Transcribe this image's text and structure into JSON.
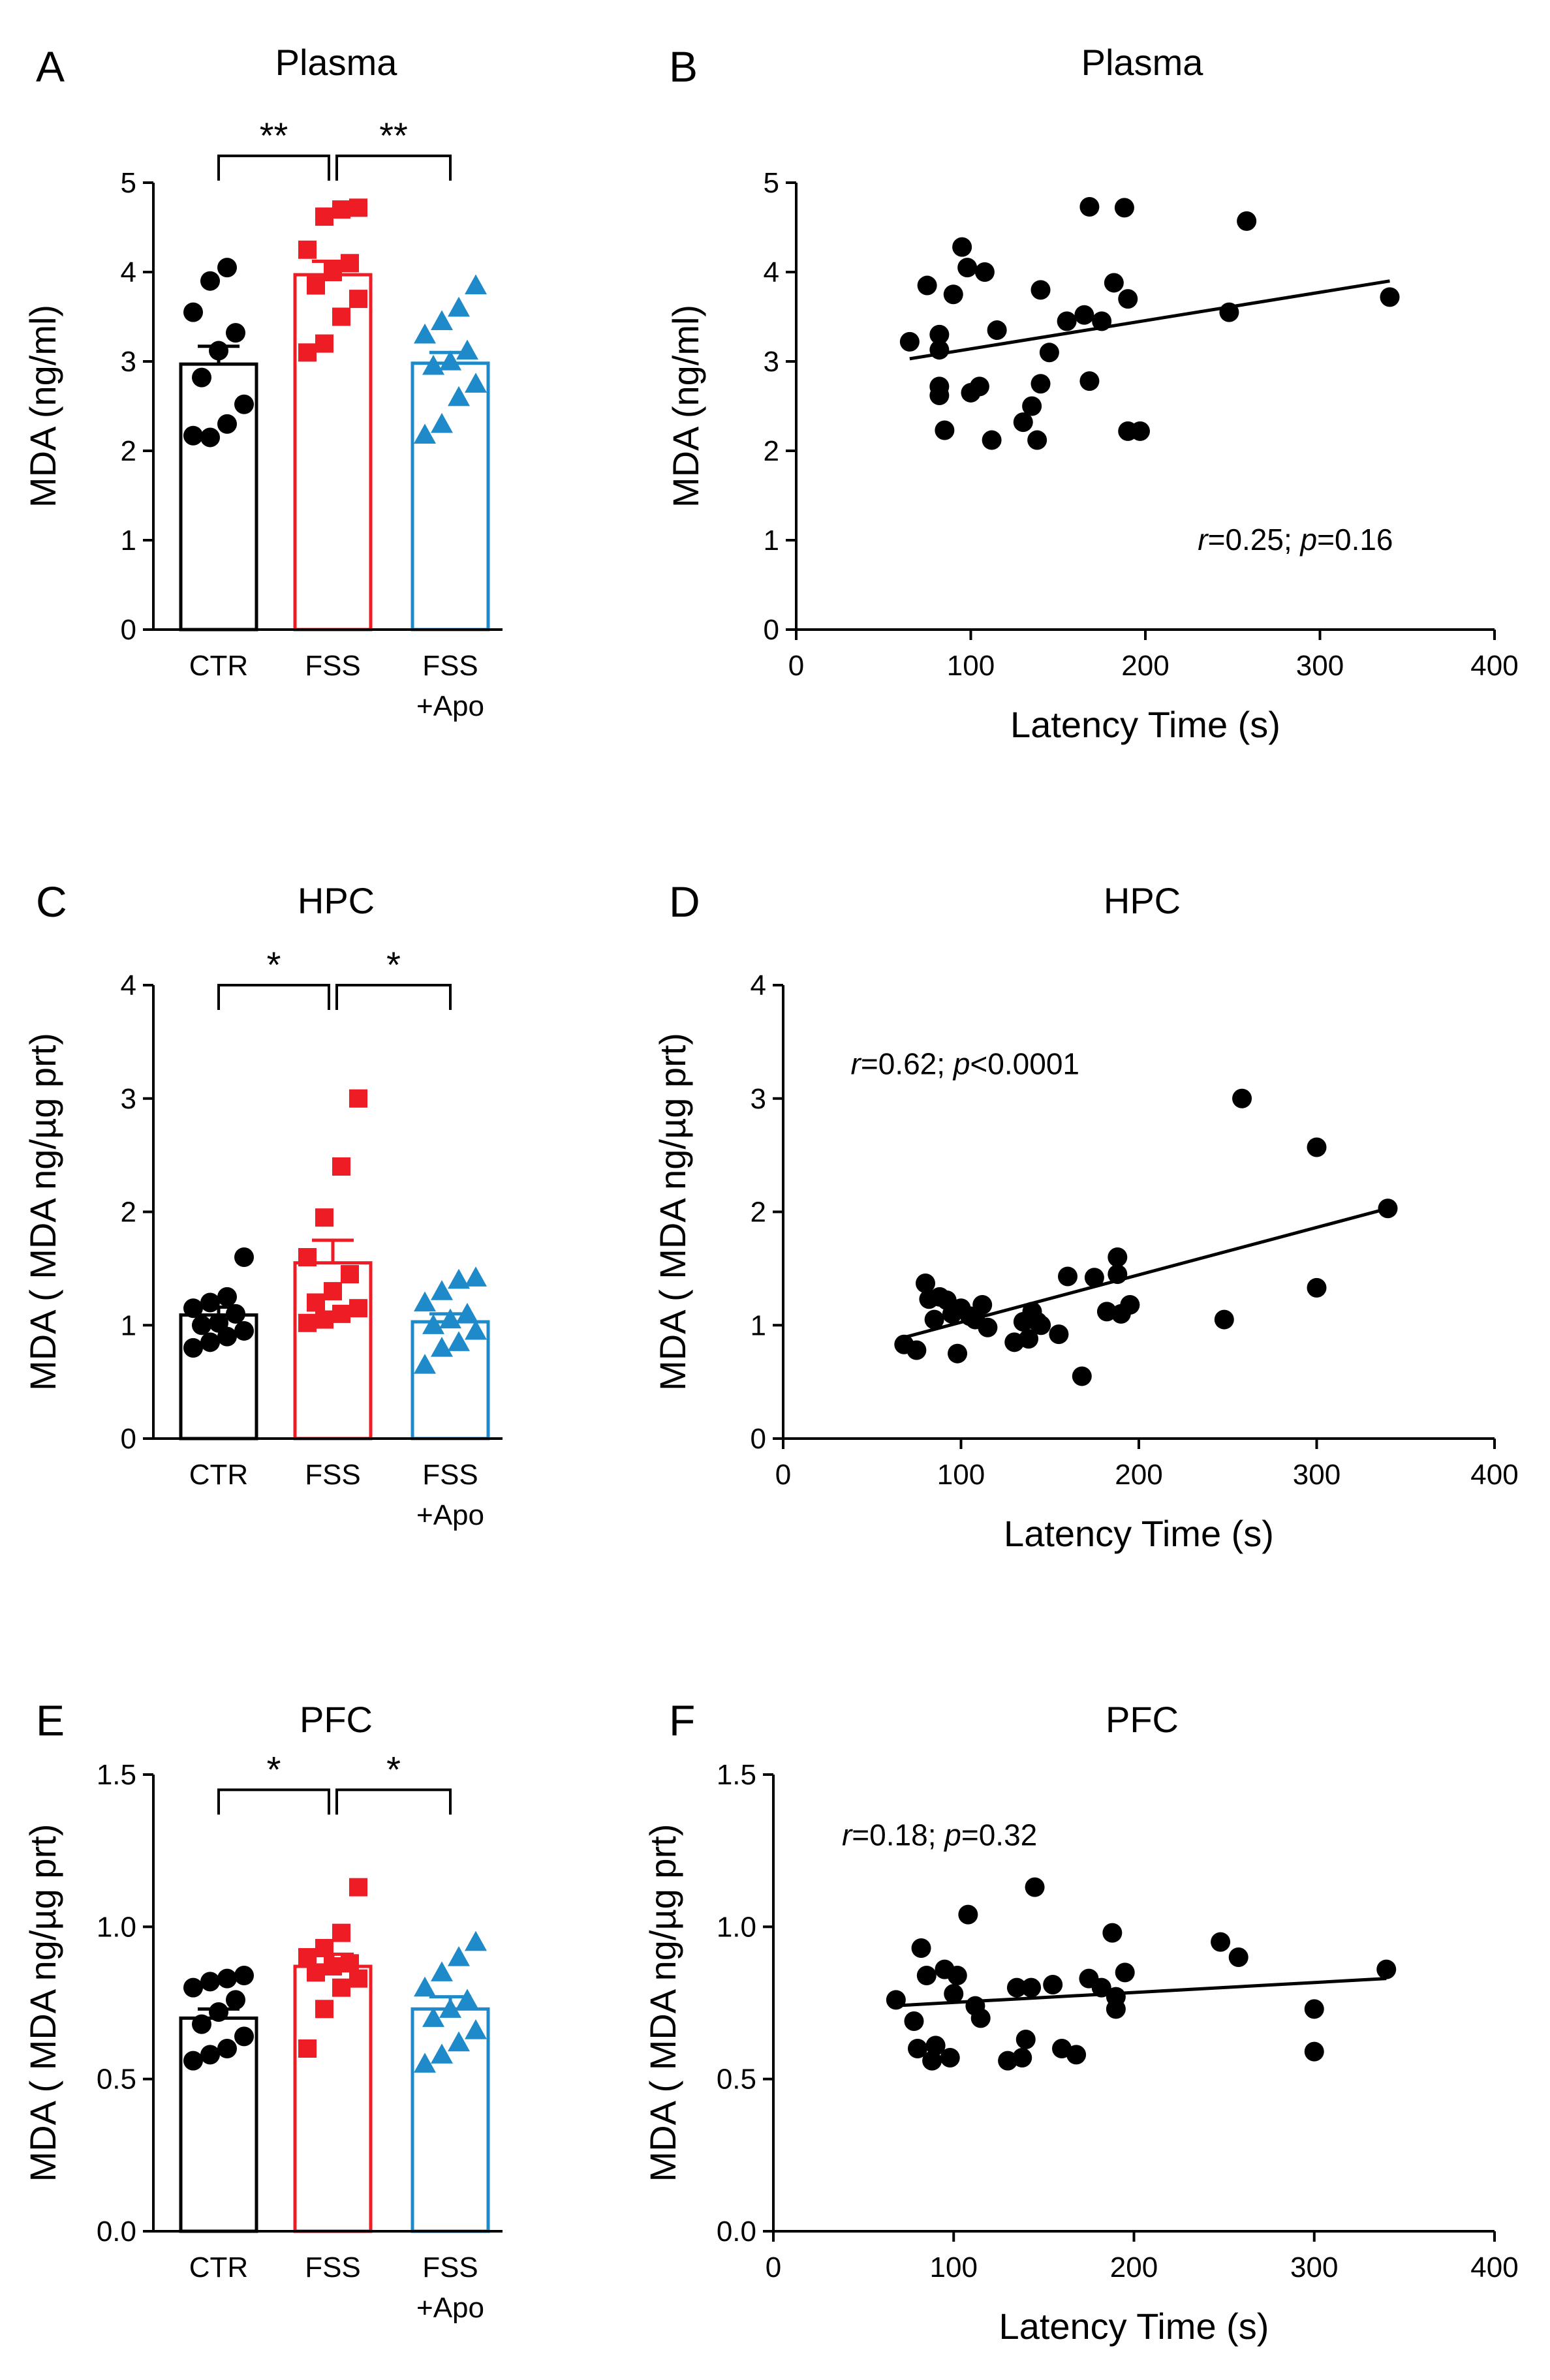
{
  "figure": {
    "panels": [
      {
        "letter": "A",
        "title": "Plasma"
      },
      {
        "letter": "B",
        "title": "Plasma"
      },
      {
        "letter": "C",
        "title": "HPC"
      },
      {
        "letter": "D",
        "title": "HPC"
      },
      {
        "letter": "E",
        "title": "PFC"
      },
      {
        "letter": "F",
        "title": "PFC"
      }
    ]
  },
  "colors": {
    "ctr": "#000000",
    "fss": "#ee1c25",
    "apo": "#1f8ac9",
    "axis": "#000000"
  },
  "chart_data": [
    {
      "panel": "A",
      "type": "bar",
      "title": "Plasma",
      "ylabel": "MDA (ng/ml)",
      "ylim": [
        0,
        5
      ],
      "yticks": [
        0,
        1,
        2,
        3,
        4,
        5
      ],
      "ytick_labels": [
        "0",
        "1",
        "2",
        "3",
        "4",
        "5"
      ],
      "groups": [
        {
          "name": "CTR",
          "label_lines": [
            "CTR"
          ],
          "mean": 2.97,
          "sem": 0.2,
          "marker": "circle",
          "points": [
            2.17,
            2.15,
            2.3,
            2.52,
            2.82,
            3.12,
            3.32,
            3.55,
            3.9,
            4.05
          ]
        },
        {
          "name": "FSS",
          "label_lines": [
            "FSS"
          ],
          "mean": 3.97,
          "sem": 0.15,
          "marker": "square",
          "points": [
            3.1,
            3.2,
            3.5,
            3.7,
            3.85,
            4.0,
            4.1,
            4.25,
            4.62,
            4.7,
            4.72
          ]
        },
        {
          "name": "FSS+Apo",
          "label_lines": [
            "FSS",
            "+Apo"
          ],
          "mean": 2.98,
          "sem": 0.12,
          "marker": "triangle",
          "points": [
            2.18,
            2.3,
            2.6,
            2.75,
            2.95,
            3.0,
            3.12,
            3.3,
            3.45,
            3.6,
            3.85
          ]
        }
      ],
      "significance": [
        {
          "from": 0,
          "to": 1,
          "label": "**"
        },
        {
          "from": 1,
          "to": 2,
          "label": "**"
        }
      ],
      "bracket_y": 5.3
    },
    {
      "panel": "B",
      "type": "scatter",
      "title": "Plasma",
      "xlabel": "Latency Time (s)",
      "ylabel": "MDA (ng/ml)",
      "xlim": [
        0,
        400
      ],
      "ylim": [
        0,
        5
      ],
      "xticks": [
        0,
        100,
        200,
        300,
        400
      ],
      "yticks": [
        0,
        1,
        2,
        3,
        4,
        5
      ],
      "xtick_labels": [
        "0",
        "100",
        "200",
        "300",
        "400"
      ],
      "ytick_labels": [
        "0",
        "1",
        "2",
        "3",
        "4",
        "5"
      ],
      "points": [
        [
          65,
          3.22
        ],
        [
          75,
          3.85
        ],
        [
          82,
          3.3
        ],
        [
          82,
          3.13
        ],
        [
          82,
          2.72
        ],
        [
          82,
          2.62
        ],
        [
          85,
          2.23
        ],
        [
          90,
          3.75
        ],
        [
          95,
          4.28
        ],
        [
          100,
          2.65
        ],
        [
          98,
          4.05
        ],
        [
          105,
          2.72
        ],
        [
          108,
          4.0
        ],
        [
          112,
          2.12
        ],
        [
          115,
          3.35
        ],
        [
          130,
          2.32
        ],
        [
          135,
          2.5
        ],
        [
          138,
          2.12
        ],
        [
          140,
          3.8
        ],
        [
          140,
          2.75
        ],
        [
          145,
          3.1
        ],
        [
          155,
          3.45
        ],
        [
          165,
          3.52
        ],
        [
          168,
          2.78
        ],
        [
          168,
          4.73
        ],
        [
          175,
          3.45
        ],
        [
          182,
          3.88
        ],
        [
          188,
          4.72
        ],
        [
          190,
          3.7
        ],
        [
          190,
          2.22
        ],
        [
          197,
          2.22
        ],
        [
          248,
          3.55
        ],
        [
          258,
          4.57
        ],
        [
          340,
          3.72
        ]
      ],
      "fit_line": [
        [
          65,
          3.03
        ],
        [
          340,
          3.9
        ]
      ],
      "stat": {
        "r_label": "r",
        "r_text": "=0.25; ",
        "p_label": "p",
        "p_text": "=0.16"
      },
      "stat_pos": [
        230,
        1.0
      ]
    },
    {
      "panel": "C",
      "type": "bar",
      "title": "HPC",
      "ylabel": "MDA ( MDA ng/µg prt)",
      "ylim": [
        0,
        4
      ],
      "yticks": [
        0,
        1,
        2,
        3,
        4
      ],
      "ytick_labels": [
        "0",
        "1",
        "2",
        "3",
        "4"
      ],
      "groups": [
        {
          "name": "CTR",
          "label_lines": [
            "CTR"
          ],
          "mean": 1.09,
          "sem": 0.07,
          "marker": "circle",
          "points": [
            0.8,
            0.85,
            0.9,
            0.95,
            1.0,
            1.02,
            1.1,
            1.15,
            1.2,
            1.25,
            1.6
          ]
        },
        {
          "name": "FSS",
          "label_lines": [
            "FSS"
          ],
          "mean": 1.55,
          "sem": 0.2,
          "marker": "square",
          "points": [
            1.02,
            1.05,
            1.1,
            1.15,
            1.2,
            1.3,
            1.45,
            1.6,
            1.95,
            2.4,
            3.0
          ]
        },
        {
          "name": "FSS+Apo",
          "label_lines": [
            "FSS",
            "+Apo"
          ],
          "mean": 1.03,
          "sem": 0.07,
          "marker": "triangle",
          "points": [
            0.65,
            0.8,
            0.85,
            0.95,
            1.0,
            1.05,
            1.1,
            1.2,
            1.3,
            1.4,
            1.42
          ]
        }
      ],
      "significance": [
        {
          "from": 0,
          "to": 1,
          "label": "*"
        },
        {
          "from": 1,
          "to": 2,
          "label": "*"
        }
      ],
      "bracket_y": 4.0
    },
    {
      "panel": "D",
      "type": "scatter",
      "title": "HPC",
      "xlabel": "Latency Time (s)",
      "ylabel": "MDA ( MDA ng/µg prt)",
      "xlim": [
        0,
        400
      ],
      "ylim": [
        0,
        4
      ],
      "xticks": [
        0,
        100,
        200,
        300,
        400
      ],
      "yticks": [
        0,
        1,
        2,
        3,
        4
      ],
      "xtick_labels": [
        "0",
        "100",
        "200",
        "300",
        "400"
      ],
      "ytick_labels": [
        "0",
        "1",
        "2",
        "3",
        "4"
      ],
      "points": [
        [
          68,
          0.83
        ],
        [
          75,
          0.78
        ],
        [
          80,
          1.37
        ],
        [
          82,
          1.23
        ],
        [
          85,
          1.05
        ],
        [
          88,
          1.25
        ],
        [
          92,
          1.22
        ],
        [
          95,
          1.1
        ],
        [
          98,
          0.75
        ],
        [
          100,
          1.15
        ],
        [
          105,
          1.08
        ],
        [
          108,
          1.05
        ],
        [
          112,
          1.18
        ],
        [
          115,
          0.98
        ],
        [
          130,
          0.85
        ],
        [
          135,
          1.03
        ],
        [
          138,
          0.88
        ],
        [
          140,
          1.12
        ],
        [
          143,
          1.03
        ],
        [
          145,
          1.0
        ],
        [
          155,
          0.92
        ],
        [
          160,
          1.43
        ],
        [
          168,
          0.55
        ],
        [
          175,
          1.42
        ],
        [
          182,
          1.12
        ],
        [
          188,
          1.6
        ],
        [
          188,
          1.45
        ],
        [
          190,
          1.1
        ],
        [
          195,
          1.18
        ],
        [
          248,
          1.05
        ],
        [
          258,
          3.0
        ],
        [
          300,
          2.57
        ],
        [
          300,
          1.33
        ],
        [
          340,
          2.03
        ]
      ],
      "fit_line": [
        [
          65,
          0.88
        ],
        [
          340,
          2.03
        ]
      ],
      "stat": {
        "r_label": "r",
        "r_text": "=0.62; ",
        "p_label": "p",
        "p_text": "<0.0001"
      },
      "stat_pos": [
        38,
        3.3
      ]
    },
    {
      "panel": "E",
      "type": "bar",
      "title": "PFC",
      "ylabel": "MDA ( MDA ng/µg prt)",
      "ylim": [
        0,
        1.5
      ],
      "yticks": [
        0,
        0.5,
        1.0,
        1.5
      ],
      "ytick_labels": [
        "0.0",
        "0.5",
        "1.0",
        "1.5"
      ],
      "groups": [
        {
          "name": "CTR",
          "label_lines": [
            "CTR"
          ],
          "mean": 0.7,
          "sem": 0.03,
          "marker": "circle",
          "points": [
            0.56,
            0.58,
            0.6,
            0.64,
            0.68,
            0.72,
            0.76,
            0.8,
            0.82,
            0.83,
            0.84
          ]
        },
        {
          "name": "FSS",
          "label_lines": [
            "FSS"
          ],
          "mean": 0.87,
          "sem": 0.04,
          "marker": "square",
          "points": [
            0.6,
            0.73,
            0.8,
            0.83,
            0.85,
            0.87,
            0.88,
            0.9,
            0.93,
            0.98,
            1.13
          ]
        },
        {
          "name": "FSS+Apo",
          "label_lines": [
            "FSS",
            "+Apo"
          ],
          "mean": 0.73,
          "sem": 0.04,
          "marker": "triangle",
          "points": [
            0.55,
            0.58,
            0.62,
            0.66,
            0.7,
            0.73,
            0.76,
            0.8,
            0.85,
            0.9,
            0.95
          ]
        }
      ],
      "significance": [
        {
          "from": 0,
          "to": 1,
          "label": "*"
        },
        {
          "from": 1,
          "to": 2,
          "label": "*"
        }
      ],
      "bracket_y": 1.45
    },
    {
      "panel": "F",
      "type": "scatter",
      "title": "PFC",
      "xlabel": "Latency Time (s)",
      "ylabel": "MDA ( MDA ng/µg prt)",
      "xlim": [
        0,
        400
      ],
      "ylim": [
        0,
        1.5
      ],
      "xticks": [
        0,
        100,
        200,
        300,
        400
      ],
      "yticks": [
        0,
        0.5,
        1.0,
        1.5
      ],
      "xtick_labels": [
        "0",
        "100",
        "200",
        "300",
        "400"
      ],
      "ytick_labels": [
        "0.0",
        "0.5",
        "1.0",
        "1.5"
      ],
      "points": [
        [
          68,
          0.76
        ],
        [
          78,
          0.69
        ],
        [
          80,
          0.6
        ],
        [
          82,
          0.93
        ],
        [
          85,
          0.84
        ],
        [
          88,
          0.56
        ],
        [
          90,
          0.61
        ],
        [
          95,
          0.86
        ],
        [
          98,
          0.57
        ],
        [
          100,
          0.78
        ],
        [
          102,
          0.84
        ],
        [
          108,
          1.04
        ],
        [
          112,
          0.74
        ],
        [
          115,
          0.7
        ],
        [
          130,
          0.56
        ],
        [
          135,
          0.8
        ],
        [
          138,
          0.57
        ],
        [
          140,
          0.63
        ],
        [
          143,
          0.8
        ],
        [
          145,
          1.13
        ],
        [
          155,
          0.81
        ],
        [
          160,
          0.6
        ],
        [
          168,
          0.58
        ],
        [
          175,
          0.83
        ],
        [
          182,
          0.8
        ],
        [
          188,
          0.98
        ],
        [
          190,
          0.73
        ],
        [
          190,
          0.77
        ],
        [
          195,
          0.85
        ],
        [
          248,
          0.95
        ],
        [
          258,
          0.9
        ],
        [
          300,
          0.73
        ],
        [
          300,
          0.59
        ],
        [
          340,
          0.86
        ]
      ],
      "fit_line": [
        [
          65,
          0.74
        ],
        [
          340,
          0.83
        ]
      ],
      "stat": {
        "r_label": "r",
        "r_text": "=0.18; ",
        "p_label": "p",
        "p_text": "=0.32"
      },
      "stat_pos": [
        38,
        1.3
      ]
    }
  ]
}
